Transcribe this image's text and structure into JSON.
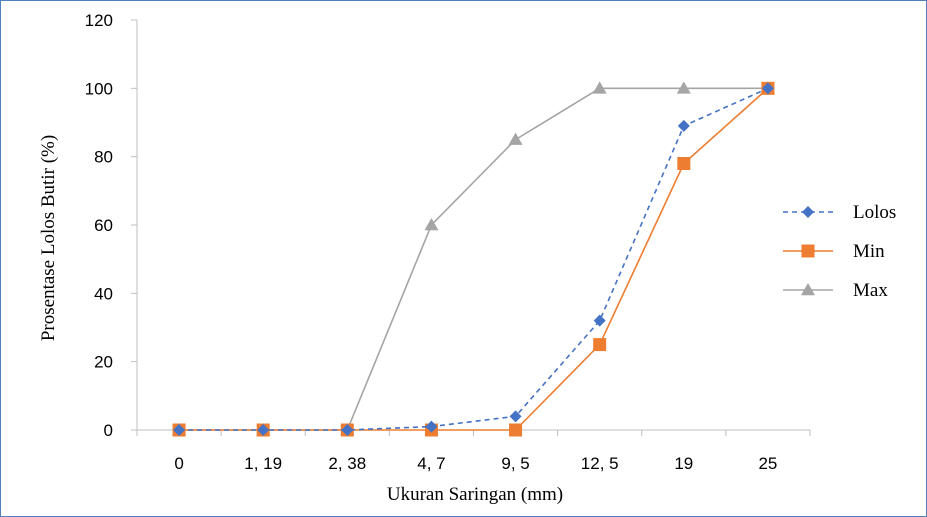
{
  "chart_data": {
    "type": "line",
    "title": "",
    "xlabel": "Ukuran Saringan (mm)",
    "ylabel": "Prosentase Lolos Butir (%)",
    "categories": [
      "0",
      "1, 19",
      "2, 38",
      "4, 7",
      "9, 5",
      "12, 5",
      "19",
      "25"
    ],
    "ylim": [
      0,
      120
    ],
    "yticks": [
      0,
      20,
      40,
      60,
      80,
      100,
      120
    ],
    "grid": false,
    "legend_position": "right",
    "series": [
      {
        "name": "Lolos",
        "values": [
          0,
          0,
          0,
          1,
          4,
          32,
          89,
          100
        ],
        "color": "#4472c4",
        "marker": "diamond",
        "dash": "dashed"
      },
      {
        "name": "Min",
        "values": [
          0,
          0,
          0,
          0,
          0,
          25,
          78,
          100
        ],
        "color": "#ed7d31",
        "marker": "square",
        "dash": "solid"
      },
      {
        "name": "Max",
        "values": [
          0,
          0,
          0,
          60,
          85,
          100,
          100,
          100
        ],
        "color": "#a5a5a5",
        "marker": "triangle",
        "dash": "solid"
      }
    ]
  }
}
